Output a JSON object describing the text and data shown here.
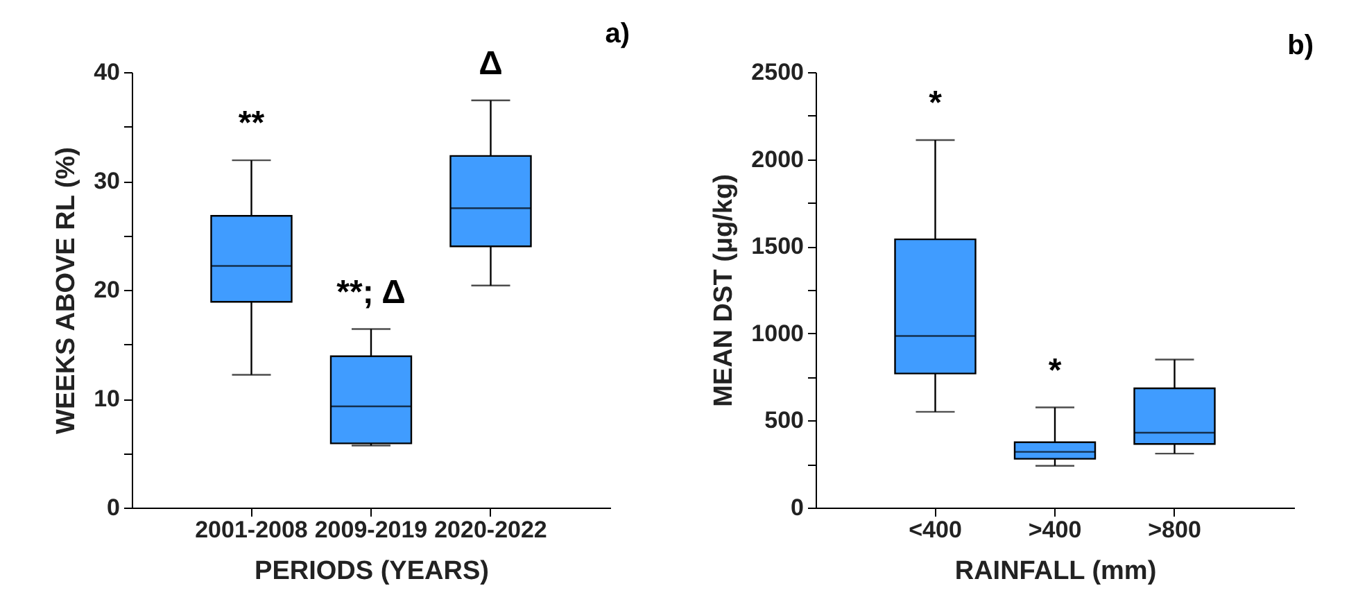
{
  "chart_data": [
    {
      "type": "box",
      "xlabel": "PERIODS (YEARS)",
      "ylabel": "WEEKS ABOVE RL (%)",
      "categories": [
        "2001-2008",
        "2009-2019",
        "2020-2022"
      ],
      "series": [
        {
          "color": "#409cff",
          "boxes": [
            {
              "low": 12.2,
              "q1": 18.9,
              "median": 22.2,
              "q3": 26.8,
              "high": 31.9
            },
            {
              "low": 5.7,
              "q1": 5.9,
              "median": 9.3,
              "q3": 13.9,
              "high": 16.4
            },
            {
              "low": 20.4,
              "q1": 24.0,
              "median": 27.5,
              "q3": 32.3,
              "high": 37.4
            }
          ]
        }
      ],
      "ylim": [
        0,
        40
      ],
      "yticks": [
        0,
        {
          "value": 5,
          "label": null
        },
        10,
        {
          "value": 15,
          "label": null
        },
        20,
        {
          "value": 25,
          "label": null
        },
        30,
        {
          "value": 35,
          "label": null
        },
        40
      ],
      "grid": false,
      "annotations": [
        "a)",
        "**",
        "**; Δ",
        "Δ"
      ]
    },
    {
      "type": "box",
      "xlabel": "RAINFALL (mm)",
      "ylabel": "MEAN DST (μg/kg)",
      "categories": [
        "<400",
        ">400",
        ">800"
      ],
      "series": [
        {
          "color": "#409cff",
          "boxes": [
            {
              "low": 550,
              "q1": 770,
              "median": 985,
              "q3": 1540,
              "high": 2110
            },
            {
              "low": 240,
              "q1": 280,
              "median": 320,
              "q3": 375,
              "high": 575
            },
            {
              "low": 310,
              "q1": 365,
              "median": 430,
              "q3": 685,
              "high": 850
            }
          ]
        }
      ],
      "ylim": [
        0,
        2500
      ],
      "yticks": [
        0,
        {
          "value": 250,
          "label": null
        },
        500,
        {
          "value": 750,
          "label": null
        },
        1000,
        {
          "value": 1250,
          "label": null
        },
        1500,
        {
          "value": 1750,
          "label": null
        },
        2000,
        {
          "value": 2250,
          "label": null
        },
        2500
      ],
      "grid": false,
      "annotations": [
        "b)",
        "*",
        "*"
      ]
    }
  ]
}
